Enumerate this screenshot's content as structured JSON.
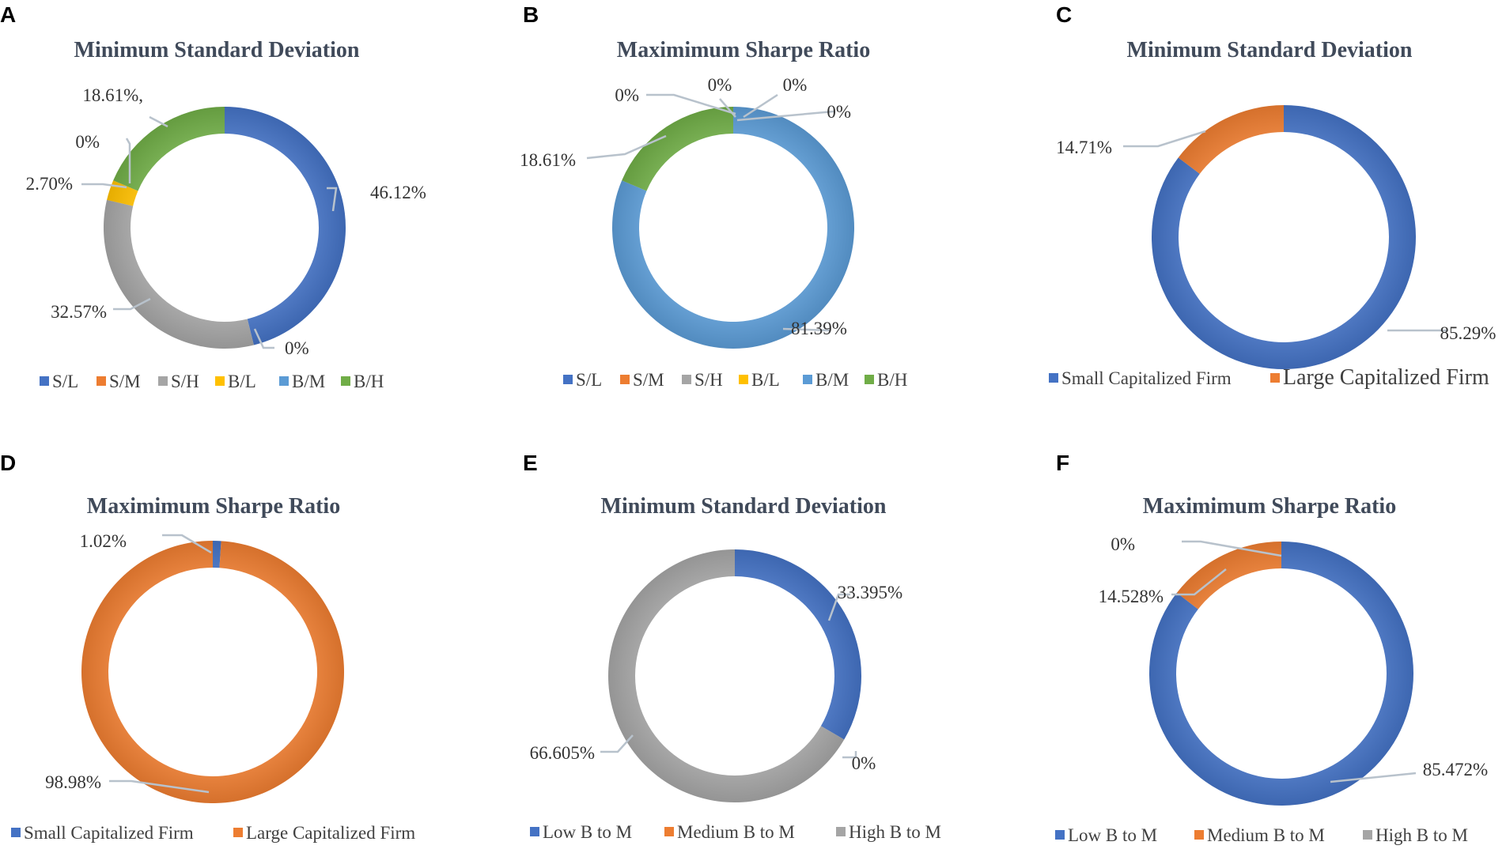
{
  "chart_data": [
    {
      "type": "pie",
      "panel": "A",
      "title": "Minimum Standard Deviation",
      "legend_position": "bottom",
      "categories": [
        "S/L",
        "S/M",
        "S/H",
        "B/L",
        "B/M",
        "B/H"
      ],
      "values": [
        46.12,
        0,
        32.57,
        2.7,
        0,
        18.61
      ],
      "labels": [
        "46.12%",
        "0%",
        "32.57%",
        "2.70%",
        "0%",
        "18.61%,"
      ],
      "colors": [
        "#4472c4",
        "#ed7d31",
        "#a5a5a5",
        "#ffc000",
        "#5b9bd5",
        "#70ad47"
      ]
    },
    {
      "type": "pie",
      "panel": "B",
      "title": "Maximimum Sharpe Ratio",
      "legend_position": "bottom",
      "categories": [
        "S/L",
        "S/M",
        "S/H",
        "B/L",
        "B/M",
        "B/H"
      ],
      "values": [
        0,
        0,
        0,
        0,
        81.39,
        18.61
      ],
      "labels": [
        "0%",
        "0%",
        "0%",
        "0%",
        "81.39%",
        "18.61%"
      ],
      "colors": [
        "#4472c4",
        "#ed7d31",
        "#a5a5a5",
        "#ffc000",
        "#5b9bd5",
        "#70ad47"
      ]
    },
    {
      "type": "pie",
      "panel": "C",
      "title": "Minimum Standard Deviation",
      "legend_position": "bottom",
      "categories": [
        "Small Capitalized Firm",
        "Large Capitalized Firm"
      ],
      "values": [
        85.29,
        14.71
      ],
      "labels": [
        "85.29%",
        "14.71%"
      ],
      "colors": [
        "#4472c4",
        "#ed7d31"
      ]
    },
    {
      "type": "pie",
      "panel": "D",
      "title": "Maximimum Sharpe Ratio",
      "legend_position": "bottom",
      "categories": [
        "Small Capitalized Firm",
        "Large Capitalized Firm"
      ],
      "values": [
        1.02,
        98.98
      ],
      "labels": [
        "1.02%",
        "98.98%"
      ],
      "colors": [
        "#4472c4",
        "#ed7d31"
      ]
    },
    {
      "type": "pie",
      "panel": "E",
      "title": "Minimum Standard Deviation",
      "legend_position": "bottom",
      "categories": [
        "Low B to M",
        "Medium B to M",
        "High B to M"
      ],
      "values": [
        33.395,
        0,
        66.605
      ],
      "labels": [
        "33.395%",
        "0%",
        "66.605%"
      ],
      "colors": [
        "#4472c4",
        "#ed7d31",
        "#a5a5a5"
      ]
    },
    {
      "type": "pie",
      "panel": "F",
      "title": "Maximimum Sharpe Ratio",
      "legend_position": "bottom",
      "categories": [
        "Low B to M",
        "Medium B to M",
        "High B to M"
      ],
      "values": [
        85.472,
        14.528,
        0
      ],
      "labels": [
        "85.472%",
        "14.528%",
        "0%"
      ],
      "colors": [
        "#4472c4",
        "#ed7d31",
        "#a5a5a5"
      ]
    }
  ]
}
